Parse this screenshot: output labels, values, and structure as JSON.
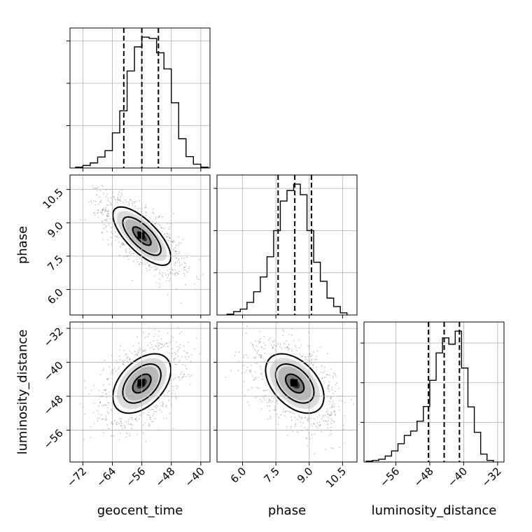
{
  "chart_data": {
    "type": "corner",
    "parameters": [
      "geocent_time",
      "phase",
      "luminosity_distance"
    ],
    "axes": {
      "geocent_time": {
        "label": "geocent_time",
        "lim": [
          -75.5,
          -37.5
        ],
        "ticks": [
          -72,
          -64,
          -56,
          -48,
          -40
        ],
        "tick_labels": [
          "−72",
          "−64",
          "−56",
          "−48",
          "−40"
        ]
      },
      "phase": {
        "label": "phase",
        "lim": [
          4.85,
          11.15
        ],
        "ticks": [
          6.0,
          7.5,
          9.0,
          10.5
        ],
        "tick_labels": [
          "6.0",
          "7.5",
          "9.0",
          "10.5"
        ]
      },
      "luminosity_distance": {
        "label": "luminosity_distance",
        "lim": [
          -63.5,
          -30.5
        ],
        "ticks": [
          -56,
          -48,
          -40,
          -32
        ],
        "tick_labels": [
          "−56",
          "−48",
          "−40",
          "−32"
        ]
      }
    },
    "diagonal": [
      {
        "param": "geocent_time",
        "bin_edges": [
          -74,
          -72,
          -70,
          -68,
          -66,
          -64,
          -62,
          -60,
          -58,
          -56,
          -54,
          -52,
          -50,
          -48,
          -46,
          -44,
          -42,
          -40,
          -38
        ],
        "counts": [
          0.2,
          0.6,
          1.2,
          2.6,
          4.1,
          8.3,
          13.5,
          22.9,
          28.6,
          30.9,
          30.6,
          27.2,
          23.4,
          15.4,
          6.9,
          2.7,
          0.9,
          0.2
        ],
        "quantiles": [
          -60.9,
          -56.0,
          -51.5
        ]
      },
      {
        "param": "phase",
        "bin_edges": [
          5.3,
          5.6,
          5.9,
          6.2,
          6.5,
          6.8,
          7.1,
          7.4,
          7.7,
          8.0,
          8.3,
          8.6,
          8.9,
          9.2,
          9.5,
          9.8,
          10.1,
          10.4,
          10.7
        ],
        "counts": [
          0.2,
          0.8,
          1.4,
          3.0,
          5.5,
          9.0,
          13.8,
          20.0,
          27.0,
          29.5,
          31.0,
          28.5,
          20.0,
          12.5,
          8.0,
          4.0,
          2.0,
          0.5
        ],
        "quantiles": [
          7.6,
          8.35,
          9.1
        ]
      },
      {
        "param": "luminosity_distance",
        "bin_edges": [
          -63,
          -61.5,
          -60,
          -58.5,
          -57,
          -55.5,
          -54,
          -52.5,
          -51,
          -49.5,
          -48,
          -46.5,
          -45,
          -43.5,
          -42,
          -40.5,
          -39,
          -37.5,
          -36,
          -34.5,
          -33
        ],
        "counts": [
          0.2,
          0.4,
          0.7,
          1.5,
          2.8,
          4.6,
          6.7,
          7.8,
          10.3,
          14.0,
          20.6,
          27.5,
          31.3,
          29.7,
          33.0,
          23.7,
          13.9,
          7.5,
          2.0,
          0.4
        ],
        "quantiles": [
          -48.3,
          -44.6,
          -41.0
        ]
      }
    ],
    "pairs": [
      {
        "x": "geocent_time",
        "y": "phase",
        "center": [
          -56.0,
          8.4
        ],
        "sd": [
          4.5,
          0.75
        ],
        "rho": -0.72
      },
      {
        "x": "geocent_time",
        "y": "luminosity_distance",
        "center": [
          -56.0,
          -45.0
        ],
        "sd": [
          4.5,
          4.0
        ],
        "rho": 0.45
      },
      {
        "x": "phase",
        "y": "luminosity_distance",
        "center": [
          8.35,
          -45.0
        ],
        "sd": [
          0.75,
          4.0
        ],
        "rho": -0.45
      }
    ],
    "grid": true,
    "histogram_y_ticks": "unlabeled"
  }
}
